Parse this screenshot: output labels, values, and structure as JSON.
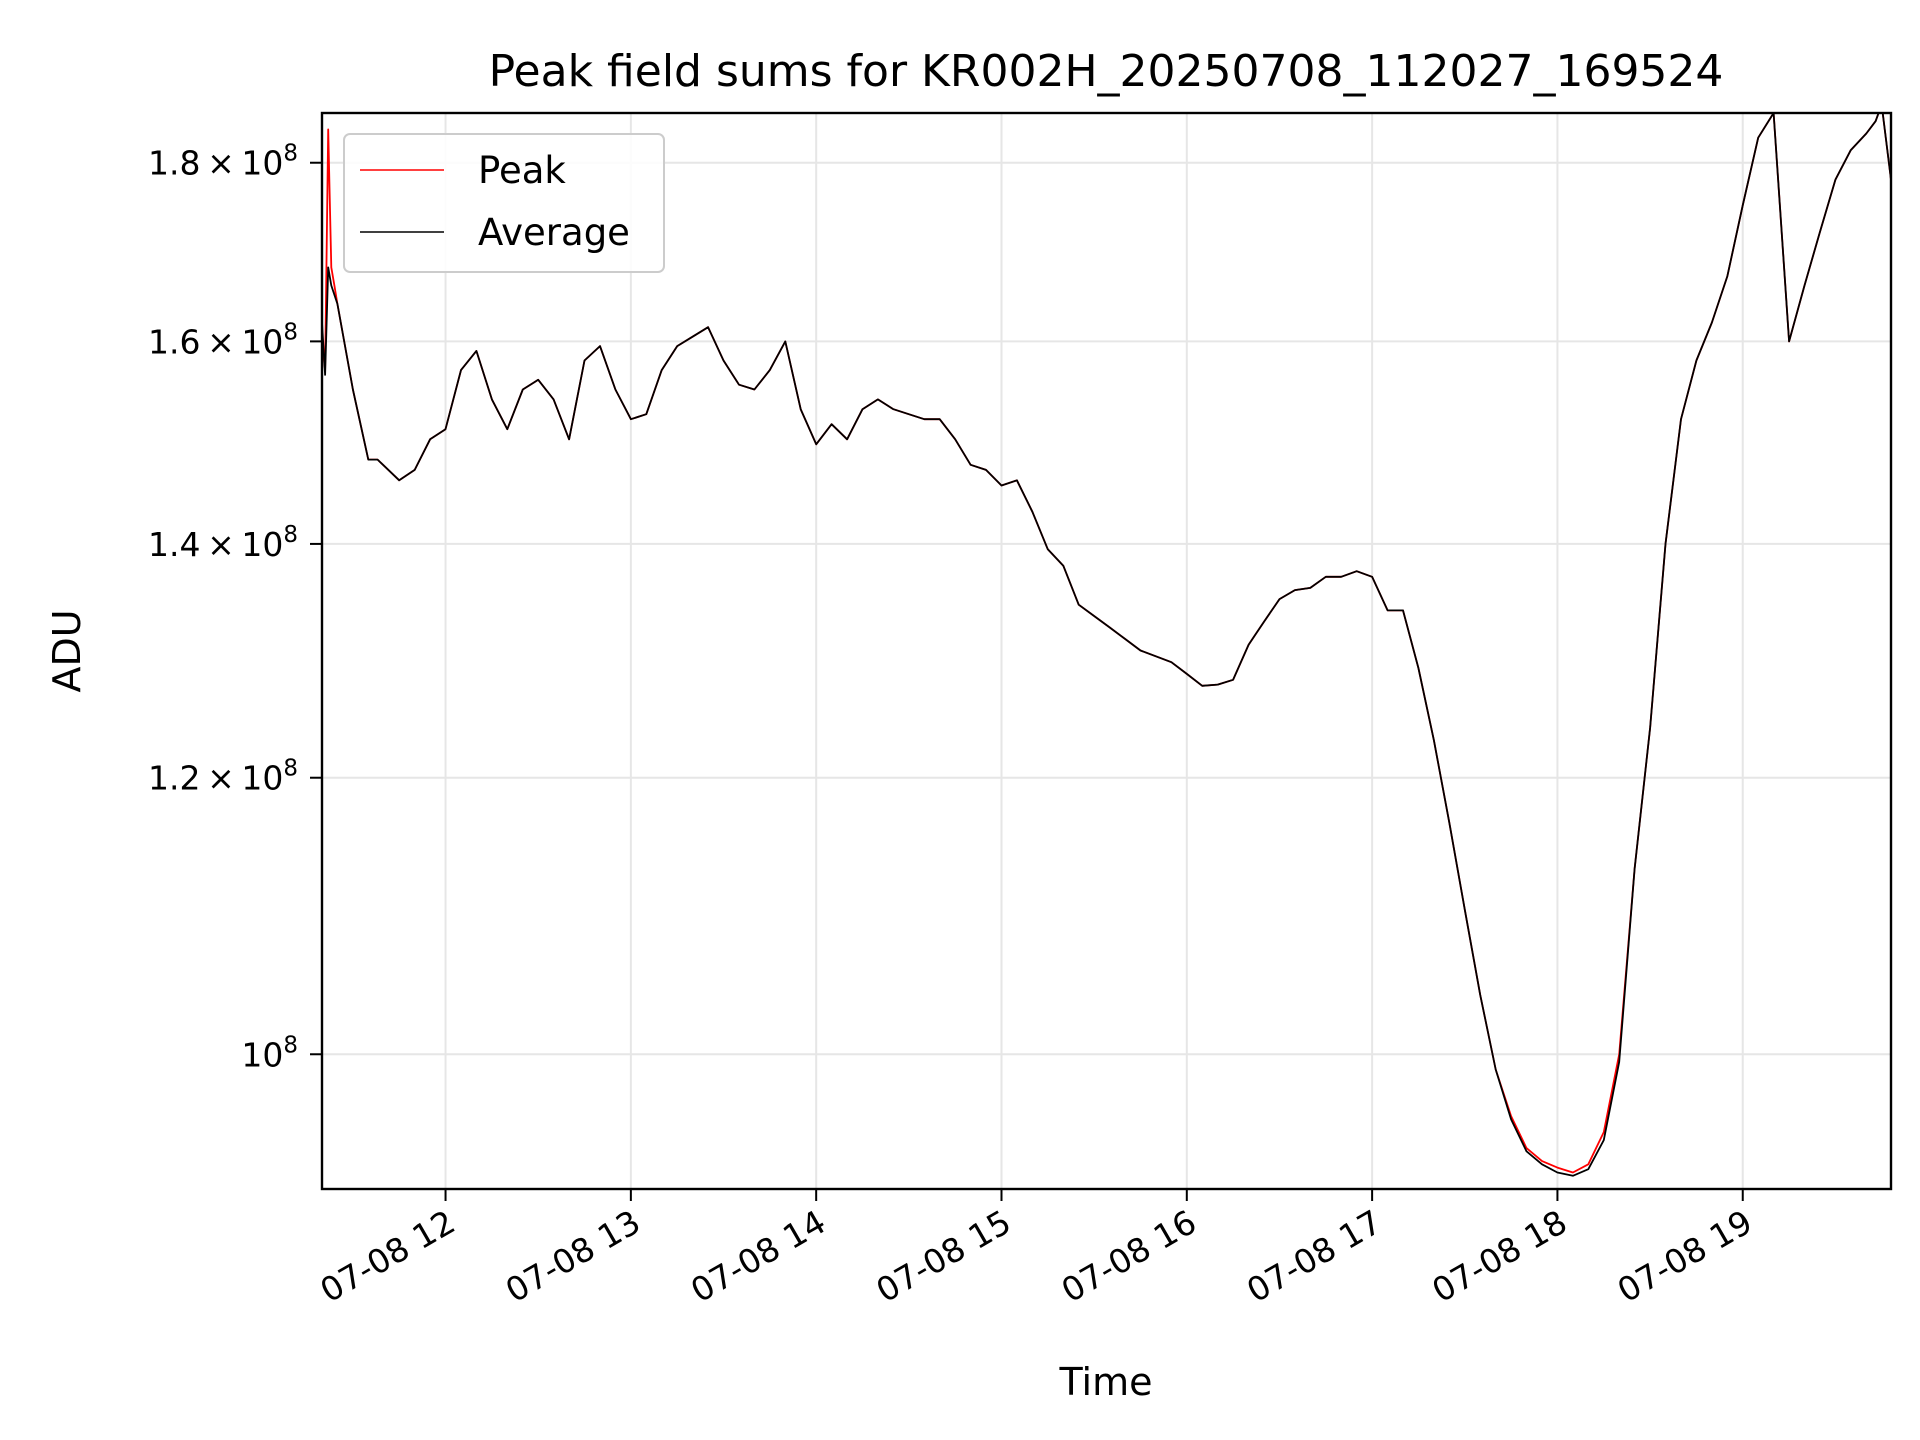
{
  "chart_data": {
    "type": "line",
    "title": "Peak field sums for KR002H_20250708_112027_169524",
    "xlabel": "Time",
    "ylabel": "ADU",
    "yscale": "log",
    "ylim": [
      91500000,
      186000000
    ],
    "xlim": [
      "07-08 11:20",
      "07-08 19:48"
    ],
    "x_tick_labels": [
      "07-08 12",
      "07-08 13",
      "07-08 14",
      "07-08 15",
      "07-08 16",
      "07-08 17",
      "07-08 18",
      "07-08 19"
    ],
    "y_ticks": [
      {
        "value": 100000000,
        "mantissa": "",
        "exp": "8"
      },
      {
        "value": 120000000,
        "mantissa": "1.2",
        "exp": "8"
      },
      {
        "value": 140000000,
        "mantissa": "1.4",
        "exp": "8"
      },
      {
        "value": 160000000,
        "mantissa": "1.6",
        "exp": "8"
      },
      {
        "value": 180000000,
        "mantissa": "1.8",
        "exp": "8"
      }
    ],
    "grid": true,
    "legend_position": "upper-left",
    "series": [
      {
        "name": "Peak",
        "color": "#ff0000",
        "x": [
          "07-08 11:20",
          "07-08 11:21",
          "07-08 11:22",
          "07-08 11:23",
          "07-08 11:24",
          "07-08 11:25",
          "07-08 11:30",
          "07-08 11:35",
          "07-08 11:38",
          "07-08 11:45",
          "07-08 11:50",
          "07-08 11:55",
          "07-08 12:00",
          "07-08 12:05",
          "07-08 12:10",
          "07-08 12:15",
          "07-08 12:20",
          "07-08 12:25",
          "07-08 12:30",
          "07-08 12:35",
          "07-08 12:40",
          "07-08 12:45",
          "07-08 12:50",
          "07-08 12:55",
          "07-08 13:00",
          "07-08 13:05",
          "07-08 13:10",
          "07-08 13:15",
          "07-08 13:20",
          "07-08 13:25",
          "07-08 13:30",
          "07-08 13:35",
          "07-08 13:40",
          "07-08 13:45",
          "07-08 13:50",
          "07-08 13:55",
          "07-08 14:00",
          "07-08 14:05",
          "07-08 14:10",
          "07-08 14:15",
          "07-08 14:20",
          "07-08 14:25",
          "07-08 14:30",
          "07-08 14:35",
          "07-08 14:40",
          "07-08 14:45",
          "07-08 14:50",
          "07-08 14:55",
          "07-08 15:00",
          "07-08 15:05",
          "07-08 15:10",
          "07-08 15:15",
          "07-08 15:20",
          "07-08 15:25",
          "07-08 15:30",
          "07-08 15:35",
          "07-08 15:40",
          "07-08 15:45",
          "07-08 15:50",
          "07-08 15:55",
          "07-08 16:00",
          "07-08 16:05",
          "07-08 16:10",
          "07-08 16:15",
          "07-08 16:20",
          "07-08 16:25",
          "07-08 16:30",
          "07-08 16:35",
          "07-08 16:40",
          "07-08 16:45",
          "07-08 16:50",
          "07-08 16:55",
          "07-08 17:00",
          "07-08 17:05",
          "07-08 17:10",
          "07-08 17:15",
          "07-08 17:20",
          "07-08 17:25",
          "07-08 17:30",
          "07-08 17:35",
          "07-08 17:40",
          "07-08 17:45",
          "07-08 17:50",
          "07-08 17:55",
          "07-08 18:00",
          "07-08 18:05",
          "07-08 18:10",
          "07-08 18:15",
          "07-08 18:20",
          "07-08 18:25",
          "07-08 18:30",
          "07-08 18:35",
          "07-08 18:40",
          "07-08 18:45",
          "07-08 18:50",
          "07-08 18:55",
          "07-08 19:00",
          "07-08 19:05",
          "07-08 19:10",
          "07-08 19:15",
          "07-08 19:20",
          "07-08 19:25",
          "07-08 19:30",
          "07-08 19:35",
          "07-08 19:40",
          "07-08 19:43",
          "07-08 19:44",
          "07-08 19:45",
          "07-08 19:48"
        ],
        "values": [
          160000000,
          157000000,
          184000000,
          168000000,
          166000000,
          164000000,
          155000000,
          148000000,
          148000000,
          146000000,
          147000000,
          150000000,
          151000000,
          157000000,
          159000000,
          154000000,
          151000000,
          155000000,
          156000000,
          154000000,
          150000000,
          158000000,
          159500000,
          155000000,
          152000000,
          152500000,
          157000000,
          159500000,
          160500000,
          161500000,
          158000000,
          155500000,
          155000000,
          157000000,
          160000000,
          153000000,
          149500000,
          151500000,
          150000000,
          153000000,
          154000000,
          153000000,
          152500000,
          152000000,
          152000000,
          150000000,
          147500000,
          147000000,
          145500000,
          146000000,
          143000000,
          139500000,
          138000000,
          134500000,
          133500000,
          132500000,
          131500000,
          130500000,
          130000000,
          129500000,
          128500000,
          127500000,
          127600000,
          128000000,
          131000000,
          133000000,
          135000000,
          135800000,
          136000000,
          137000000,
          137000000,
          137500000,
          137000000,
          134000000,
          134000000,
          129000000,
          123000000,
          116500000,
          110000000,
          104000000,
          99000000,
          96000000,
          94000000,
          93200000,
          92800000,
          92500000,
          93000000,
          95000000,
          100000000,
          113000000,
          124000000,
          140000000,
          152000000,
          158000000,
          162000000,
          167000000,
          175000000,
          183000000,
          186000000,
          160000000,
          166000000,
          172000000,
          178000000,
          181500000,
          183500000,
          185000000,
          186000000,
          187000000,
          178000000
        ],
        "note_unused": null
      },
      {
        "name": "Average",
        "color": "#000000",
        "x": [
          "07-08 11:20",
          "07-08 11:21",
          "07-08 11:22",
          "07-08 11:23",
          "07-08 11:25",
          "07-08 11:30",
          "07-08 11:35",
          "07-08 11:38",
          "07-08 11:45",
          "07-08 11:50",
          "07-08 11:55",
          "07-08 12:00",
          "07-08 12:05",
          "07-08 12:10",
          "07-08 12:15",
          "07-08 12:20",
          "07-08 12:25",
          "07-08 12:30",
          "07-08 12:35",
          "07-08 12:40",
          "07-08 12:45",
          "07-08 12:50",
          "07-08 12:55",
          "07-08 13:00",
          "07-08 13:05",
          "07-08 13:10",
          "07-08 13:15",
          "07-08 13:20",
          "07-08 13:25",
          "07-08 13:30",
          "07-08 13:35",
          "07-08 13:40",
          "07-08 13:45",
          "07-08 13:50",
          "07-08 13:55",
          "07-08 14:00",
          "07-08 14:05",
          "07-08 14:10",
          "07-08 14:15",
          "07-08 14:20",
          "07-08 14:25",
          "07-08 14:30",
          "07-08 14:35",
          "07-08 14:40",
          "07-08 14:45",
          "07-08 14:50",
          "07-08 14:55",
          "07-08 15:00",
          "07-08 15:05",
          "07-08 15:10",
          "07-08 15:15",
          "07-08 15:20",
          "07-08 15:25",
          "07-08 15:30",
          "07-08 15:35",
          "07-08 15:40",
          "07-08 15:45",
          "07-08 15:50",
          "07-08 15:55",
          "07-08 16:00",
          "07-08 16:05",
          "07-08 16:10",
          "07-08 16:15",
          "07-08 16:20",
          "07-08 16:25",
          "07-08 16:30",
          "07-08 16:35",
          "07-08 16:40",
          "07-08 16:45",
          "07-08 16:50",
          "07-08 16:55",
          "07-08 17:00",
          "07-08 17:05",
          "07-08 17:10",
          "07-08 17:15",
          "07-08 17:20",
          "07-08 17:25",
          "07-08 17:30",
          "07-08 17:35",
          "07-08 17:40",
          "07-08 17:45",
          "07-08 17:50",
          "07-08 17:55",
          "07-08 18:00",
          "07-08 18:05",
          "07-08 18:10",
          "07-08 18:15",
          "07-08 18:20",
          "07-08 18:25",
          "07-08 18:30",
          "07-08 18:35",
          "07-08 18:40",
          "07-08 18:45",
          "07-08 18:50",
          "07-08 18:55",
          "07-08 19:00",
          "07-08 19:05",
          "07-08 19:10",
          "07-08 19:15",
          "07-08 19:20",
          "07-08 19:25",
          "07-08 19:30",
          "07-08 19:35",
          "07-08 19:40",
          "07-08 19:43",
          "07-08 19:44",
          "07-08 19:45",
          "07-08 19:48"
        ],
        "values": [
          162000000,
          156500000,
          168000000,
          166000000,
          164000000,
          155000000,
          148000000,
          148000000,
          146000000,
          147000000,
          150000000,
          151000000,
          157000000,
          159000000,
          154000000,
          151000000,
          155000000,
          156000000,
          154000000,
          150000000,
          158000000,
          159500000,
          155000000,
          152000000,
          152500000,
          157000000,
          159500000,
          160500000,
          161500000,
          158000000,
          155500000,
          155000000,
          157000000,
          160000000,
          153000000,
          149500000,
          151500000,
          150000000,
          153000000,
          154000000,
          153000000,
          152500000,
          152000000,
          152000000,
          150000000,
          147500000,
          147000000,
          145500000,
          146000000,
          143000000,
          139500000,
          138000000,
          134500000,
          133500000,
          132500000,
          131500000,
          130500000,
          130000000,
          129500000,
          128500000,
          127500000,
          127600000,
          128000000,
          131000000,
          133000000,
          135000000,
          135800000,
          136000000,
          137000000,
          137000000,
          137500000,
          137000000,
          134000000,
          134000000,
          129000000,
          123000000,
          116500000,
          110000000,
          104000000,
          99000000,
          95800000,
          93800000,
          93000000,
          92500000,
          92300000,
          92700000,
          94500000,
          99500000,
          113000000,
          124000000,
          140000000,
          152000000,
          158000000,
          162000000,
          167000000,
          175000000,
          183000000,
          186000000,
          160000000,
          166000000,
          172000000,
          178000000,
          181500000,
          183500000,
          185000000,
          186000000,
          187000000,
          178000000
        ]
      }
    ]
  }
}
